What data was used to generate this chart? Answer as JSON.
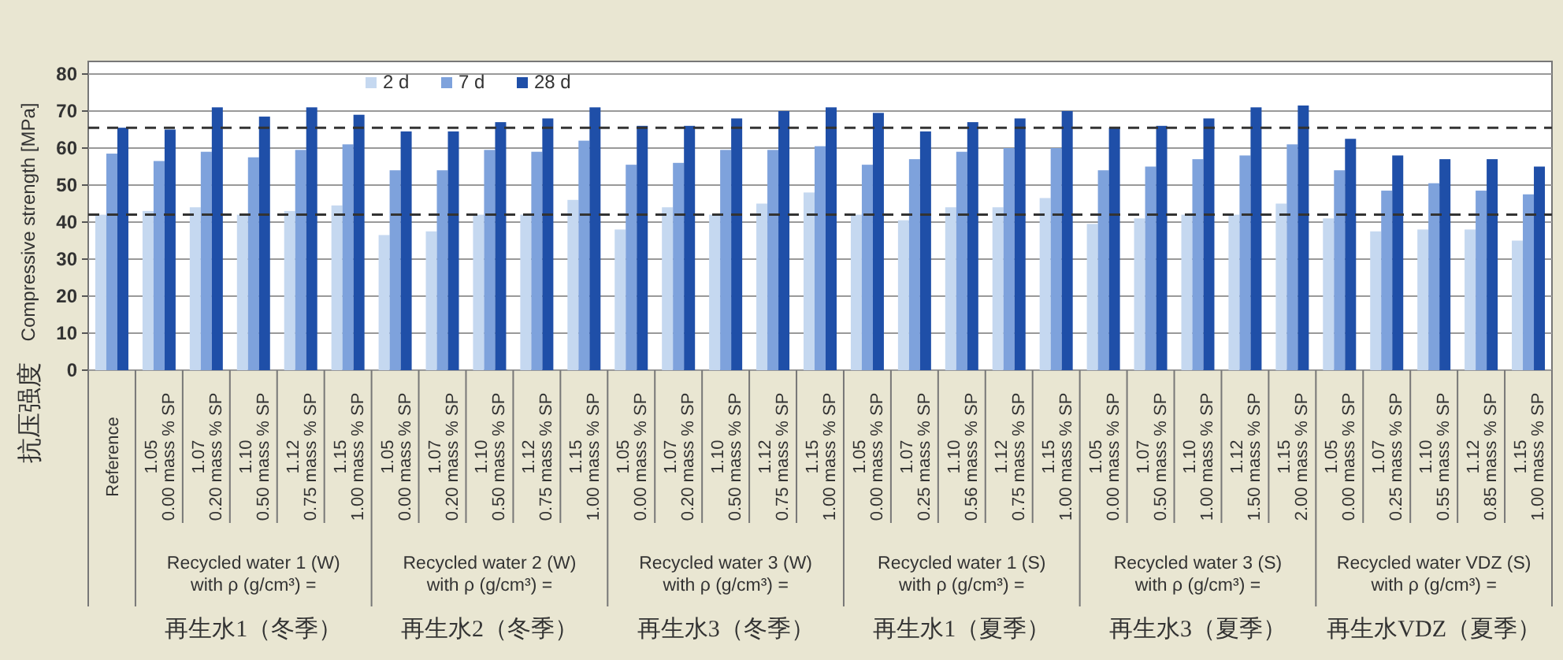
{
  "chart_data": {
    "type": "bar",
    "ylabel": "Compressive strength [MPa]",
    "categories": [
      "Reference",
      "1.05\n0.00 mass % SP",
      "1.07\n0.20 mass % SP",
      "1.10\n0.50 mass % SP",
      "1.12\n0.75 mass % SP",
      "1.15\n1.00 mass % SP",
      "1.05\n0.00 mass % SP",
      "1.07\n0.20 mass % SP",
      "1.10\n0.50 mass % SP",
      "1.12\n0.75 mass % SP",
      "1.15\n1.00 mass % SP",
      "1.05\n0.00 mass % SP",
      "1.07\n0.20 mass % SP",
      "1.10\n0.50 mass % SP",
      "1.12\n0.75 mass % SP",
      "1.15\n1.00 mass % SP",
      "1.05\n0.00 mass % SP",
      "1.07\n0.25 mass % SP",
      "1.10\n0.56 mass % SP",
      "1.12\n0.75 mass % SP",
      "1.15\n1.00 mass % SP",
      "1.05\n0.00 mass % SP",
      "1.07\n0.50 mass % SP",
      "1.10\n1.00 mass % SP",
      "1.12\n1.50 mass % SP",
      "1.15\n2.00 mass % SP",
      "1.05\n0.00 mass % SP",
      "1.07\n0.25 mass % SP",
      "1.10\n0.55 mass % SP",
      "1.12\n0.85 mass % SP",
      "1.15\n1.00 mass % SP"
    ],
    "series": [
      {
        "name": "2 d",
        "color": "#c5d8f0",
        "values": [
          42,
          43,
          44,
          42,
          43,
          44.5,
          36.5,
          37.5,
          42,
          42,
          46,
          38,
          44,
          42,
          45,
          48,
          42,
          40.5,
          44,
          44,
          46.5,
          39.5,
          41,
          42,
          42,
          45,
          41,
          37.5,
          38,
          38,
          35
        ]
      },
      {
        "name": "7 d",
        "color": "#7ea2dc",
        "values": [
          58.5,
          56.5,
          59,
          57.5,
          59.5,
          61,
          54,
          54,
          59.5,
          59,
          62,
          55.5,
          56,
          59.5,
          59.5,
          60.5,
          55.5,
          57,
          59,
          60,
          60,
          54,
          55,
          57,
          58,
          61,
          54,
          48.5,
          50.5,
          48.5,
          47.5
        ]
      },
      {
        "name": "28 d",
        "color": "#1f4fa8",
        "values": [
          65.5,
          65,
          71,
          68.5,
          71,
          69,
          64.5,
          64.5,
          67,
          68,
          71,
          66,
          66,
          68,
          70,
          71,
          69.5,
          64.5,
          67,
          68,
          70,
          65.5,
          66,
          68,
          71,
          71.5,
          62.5,
          58,
          57,
          57,
          55
        ]
      }
    ],
    "ylim": [
      0,
      80
    ],
    "yticks": [
      0,
      10,
      20,
      30,
      40,
      50,
      60,
      70,
      80
    ],
    "grid": "y",
    "legend": "top",
    "ref_lines": [
      {
        "axis": "y",
        "value": 65.5,
        "line_style": "dashed"
      },
      {
        "axis": "y",
        "value": 42,
        "line_style": "dashed"
      }
    ],
    "annotations": [
      "抗压强度",
      "Recycled water 1 (W)\nwith ρ (g/cm³) =",
      "再生水1（冬季）",
      "Recycled water 2 (W)\nwith ρ (g/cm³) =",
      "再生水2（冬季）",
      "Recycled water 3 (W)\nwith ρ (g/cm³) =",
      "再生水3（冬季）",
      "Recycled water 1 (S)\nwith ρ (g/cm³) =",
      "再生水1（夏季）",
      "Recycled water 3 (S)\nwith ρ (g/cm³) =",
      "再生水3（夏季）",
      "Recycled water VDZ (S)\nwith ρ (g/cm³) =",
      "再生水VDZ（夏季）"
    ]
  }
}
